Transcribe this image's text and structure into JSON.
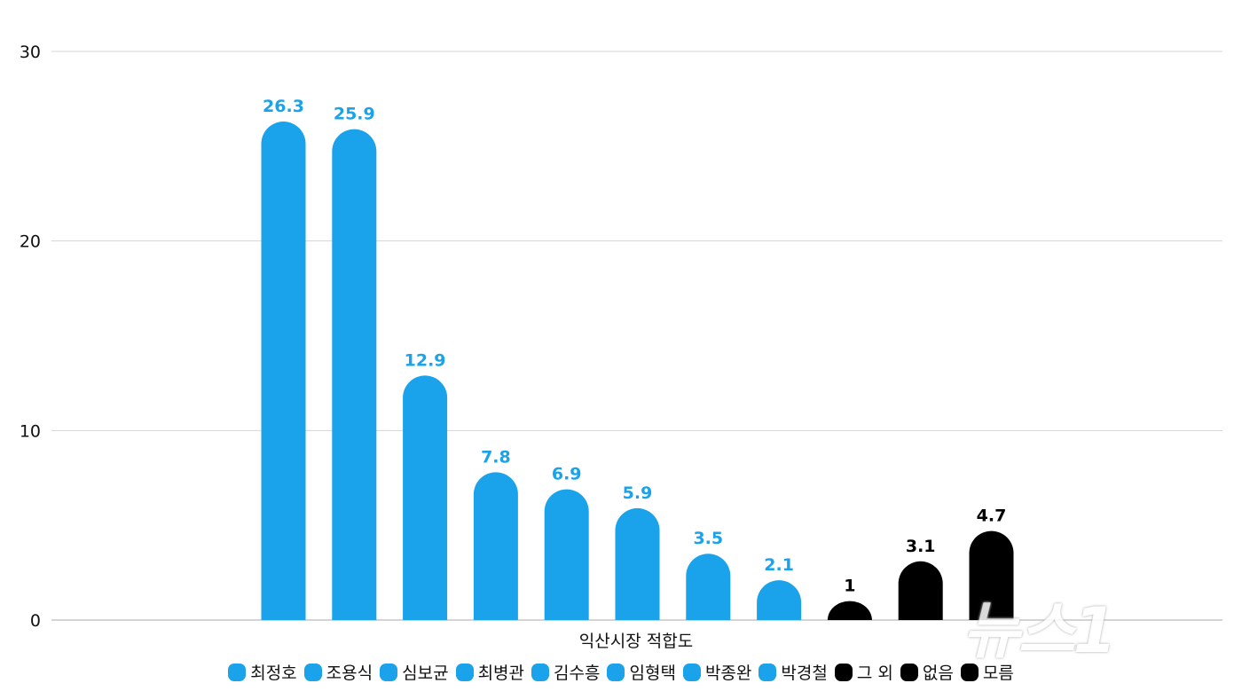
{
  "chart_data": {
    "type": "bar",
    "title": "",
    "xlabel": "익산시장 적합도",
    "ylabel": "",
    "ylim": [
      0,
      30
    ],
    "yticks": [
      0,
      10,
      20,
      30
    ],
    "grid": true,
    "legend_position": "bottom",
    "categories": [
      "최정호",
      "조용식",
      "심보균",
      "최병관",
      "김수흥",
      "임형택",
      "박종완",
      "박경철",
      "그 외",
      "없음",
      "모름"
    ],
    "values": [
      26.3,
      25.9,
      12.9,
      7.8,
      6.9,
      5.9,
      3.5,
      2.1,
      1,
      3.1,
      4.7
    ],
    "value_labels": [
      "26.3",
      "25.9",
      "12.9",
      "7.8",
      "6.9",
      "5.9",
      "3.5",
      "2.1",
      "1",
      "3.1",
      "4.7"
    ],
    "colors": [
      "#1aa3ea",
      "#1aa3ea",
      "#1aa3ea",
      "#1aa3ea",
      "#1aa3ea",
      "#1aa3ea",
      "#1aa3ea",
      "#1aa3ea",
      "#000000",
      "#000000",
      "#000000"
    ],
    "label_colors": [
      "#1aa3ea",
      "#1aa3ea",
      "#1aa3ea",
      "#1aa3ea",
      "#1aa3ea",
      "#1aa3ea",
      "#1aa3ea",
      "#1aa3ea",
      "#000000",
      "#000000",
      "#000000"
    ]
  },
  "watermark": "뉴스1"
}
